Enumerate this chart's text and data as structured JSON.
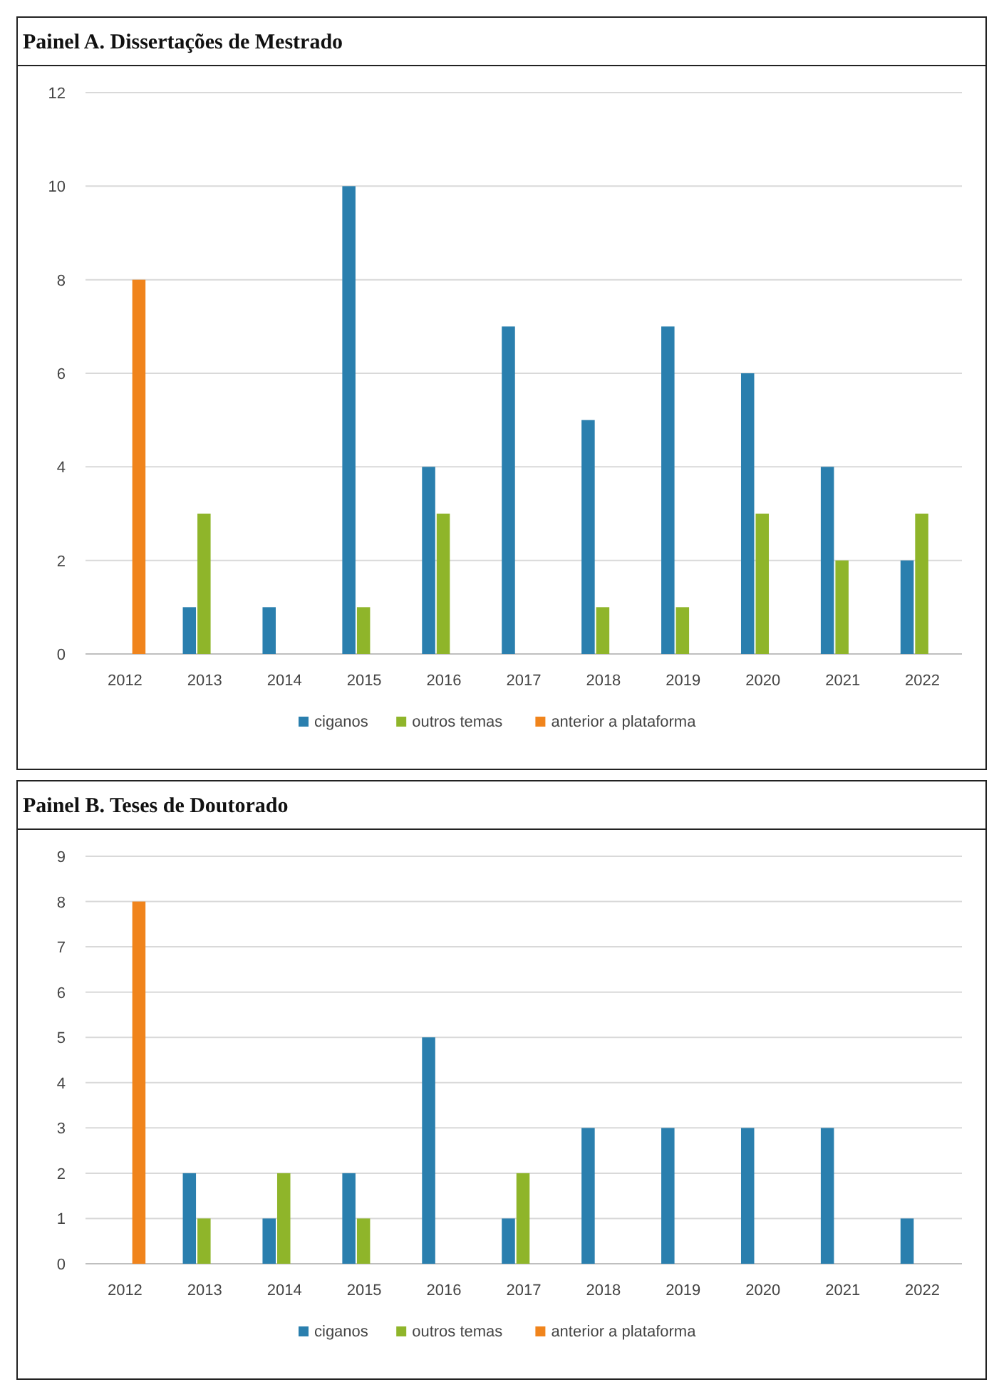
{
  "chart_data": [
    {
      "type": "bar",
      "title": "Painel A. Dissertações de Mestrado",
      "categories": [
        "2012",
        "2013",
        "2014",
        "2015",
        "2016",
        "2017",
        "2018",
        "2019",
        "2020",
        "2021",
        "2022"
      ],
      "series": [
        {
          "name": "ciganos",
          "color": "#2a7fae",
          "values": [
            0,
            1,
            1,
            10,
            4,
            7,
            5,
            7,
            6,
            4,
            2
          ]
        },
        {
          "name": "outros temas",
          "color": "#8fb52a",
          "values": [
            0,
            3,
            0,
            1,
            3,
            0,
            1,
            1,
            3,
            2,
            3
          ]
        },
        {
          "name": "anterior a plataforma",
          "color": "#f0841c",
          "values": [
            8,
            0,
            0,
            0,
            0,
            0,
            0,
            0,
            0,
            0,
            0
          ]
        }
      ],
      "ylim": [
        0,
        12
      ],
      "yticks": [
        0,
        2,
        4,
        6,
        8,
        10,
        12
      ],
      "grid": "y",
      "legend": "bottom"
    },
    {
      "type": "bar",
      "title": "Painel B. Teses de Doutorado",
      "categories": [
        "2012",
        "2013",
        "2014",
        "2015",
        "2016",
        "2017",
        "2018",
        "2019",
        "2020",
        "2021",
        "2022"
      ],
      "series": [
        {
          "name": "ciganos",
          "color": "#2a7fae",
          "values": [
            0,
            2,
            1,
            2,
            5,
            1,
            3,
            3,
            3,
            3,
            1
          ]
        },
        {
          "name": "outros temas",
          "color": "#8fb52a",
          "values": [
            0,
            1,
            2,
            1,
            0,
            2,
            0,
            0,
            0,
            0,
            0
          ]
        },
        {
          "name": "anterior a plataforma",
          "color": "#f0841c",
          "values": [
            8,
            0,
            0,
            0,
            0,
            0,
            0,
            0,
            0,
            0,
            0
          ]
        }
      ],
      "ylim": [
        0,
        9
      ],
      "yticks": [
        0,
        1,
        2,
        3,
        4,
        5,
        6,
        7,
        8,
        9
      ],
      "grid": "y",
      "legend": "bottom"
    }
  ]
}
